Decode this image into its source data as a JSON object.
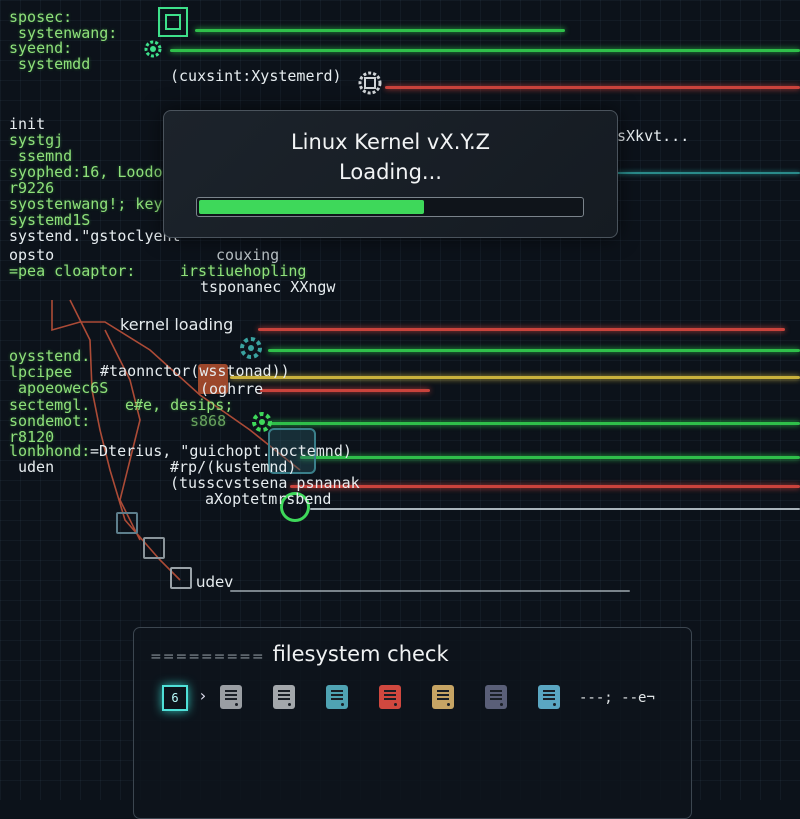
{
  "log_left": [
    "sposec:",
    "systenwang:",
    "syeend:",
    "systemdd",
    "init",
    "systgj",
    "ssemnd",
    "syophed:16, Loodo",
    "r9226",
    "syostenwang!; key",
    "systemd1S",
    "systend.\"gstoclyent",
    "opsto",
    "=pea  cloaptor:",
    "oysstend.",
    "lpcipee",
    "apoeowec6S",
    "sectemgl.",
    "sondemot:",
    "r8120",
    "lonbhond:",
    "uden"
  ],
  "log_mid": {
    "cuxsint": "(cuxsint:Xystemerd)",
    "skvt": "sXkvt...",
    "couxing": "couxing",
    "irstius": "irstiuehopling",
    "tsponaned": "tsponanec XXngw",
    "kernel_loading": "kernel loading",
    "taonnctor": "#taonnctor(wsstonad))",
    "oghre": "(oghrre",
    "desips": "e#e, desips;",
    "s868": "s868",
    "terius": "=Dterius, \"guichopt.noctemnd)",
    "rp": "#rp/(kustemnd)",
    "tussc": "(tusscvstsena psnanak",
    "axopt": "aXoptetmrsbend",
    "udev": "udev"
  },
  "modal": {
    "title": "Linux Kernel vX.Y.Z",
    "subtitle": "Loading...",
    "progress_percent": 59,
    "progress_color": "#3ed85a"
  },
  "fs_panel": {
    "prefix": "=========",
    "title": "filesystem check",
    "current_step": "6",
    "disk_colors": [
      "#9a9ea3",
      "#a3a7ab",
      "#4fa3b3",
      "#d0483f",
      "#c6a464",
      "#5a5f78",
      "#5aa6c2"
    ],
    "trailing_text": "---; --e¬"
  },
  "colors": {
    "background": "#0c121a",
    "log_green": "#8fe07a",
    "line_green": "#2fbf4a",
    "line_red": "#c9433c",
    "line_yellow": "#c9b13c"
  }
}
